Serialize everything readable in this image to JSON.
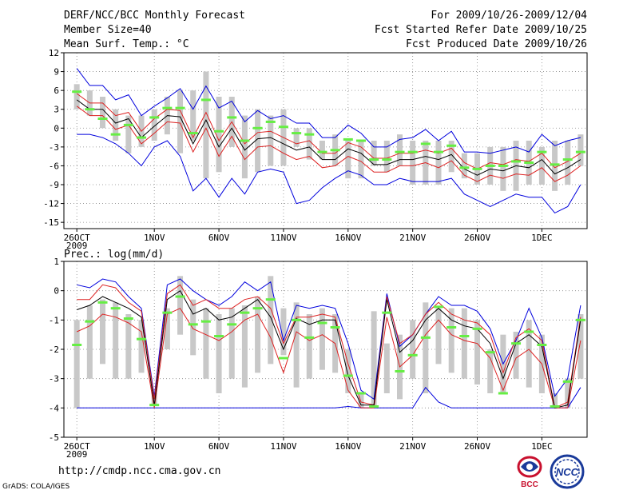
{
  "header": {
    "title": "DERF/NCC/BCC Monthly Forecast",
    "member_size": "Member Size=40",
    "variable": "Mean Surf. Temp.: °C",
    "period": "For 2009/10/26-2009/12/04",
    "started": "Fcst Started Refer Date 2009/10/25",
    "produced": "Fcst Produced Date 2009/10/26"
  },
  "footer": {
    "url": "http://cmdp.ncc.cma.gov.cn",
    "grads": "GrADS: COLA/IGES"
  },
  "logos": [
    {
      "name": "bcc-logo",
      "text": "BCC",
      "color": "#c8102e"
    },
    {
      "name": "ncc-logo",
      "text": "NCC",
      "color": "#1a3a9a"
    }
  ],
  "colors": {
    "spread": "#c8c8c8",
    "median": "#66ee44",
    "mean": "#000000",
    "inner": "#dd2222",
    "outer": "#0000dd",
    "grid": "#888888"
  },
  "chart_data": [
    {
      "type": "line",
      "title": "Mean Surf. Temp.: °C",
      "x_tick_labels": [
        "26OCT",
        "1NOV",
        "6NOV",
        "11NOV",
        "16NOV",
        "21NOV",
        "26NOV",
        "1DEC"
      ],
      "x_tick_days": [
        1,
        7,
        12,
        17,
        22,
        27,
        32,
        37
      ],
      "x_year_label": "2009",
      "days": 40,
      "ylim": [
        -16,
        12
      ],
      "yticks": [
        12,
        9,
        6,
        3,
        0,
        -3,
        -6,
        -9,
        -12,
        -15
      ],
      "series": [
        {
          "name": "spread_low",
          "values": [
            3,
            2,
            0,
            -2,
            -4,
            -3,
            -2,
            -1,
            -4,
            -2,
            -8,
            -7,
            -3,
            -8,
            -7,
            -6,
            -6,
            -3,
            -5,
            -5,
            -6,
            -8,
            -8,
            -6,
            -7,
            -6,
            -9,
            -9,
            -9,
            -7,
            -8,
            -9,
            -9,
            -10,
            -10,
            -9,
            -9,
            -10,
            -9,
            -6
          ]
        },
        {
          "name": "spread_high",
          "values": [
            7,
            6,
            5,
            3,
            2,
            2,
            3,
            5,
            6,
            6,
            9,
            5,
            5,
            2,
            3,
            2,
            3,
            0,
            0,
            -2,
            -1,
            -2,
            -2,
            -2,
            -2,
            -1,
            -2,
            -2,
            -2,
            -2,
            -4,
            -4,
            -3,
            -3,
            -2,
            -2,
            -3,
            -2,
            -2,
            -1
          ]
        },
        {
          "name": "ensemble_median",
          "values": [
            5.8,
            3.0,
            1.5,
            -1.0,
            0.5,
            -1.5,
            1.7,
            3.2,
            3.2,
            -0.8,
            4.5,
            -0.5,
            1.7,
            -2.0,
            0,
            1.0,
            0.2,
            -0.8,
            -1.0,
            -3.8,
            -3.5,
            -1.8,
            -2.0,
            -5.0,
            -5.0,
            -3.8,
            -3.8,
            -2.5,
            -3.8,
            -2.8,
            -6.3,
            -6.5,
            -6.0,
            -6.0,
            -5.3,
            -5.5,
            -3.8,
            -5.8,
            -5.0,
            -3.8
          ]
        },
        {
          "name": "ensemble_mean",
          "values": [
            4.5,
            3.0,
            3.0,
            0.8,
            1.5,
            -1.5,
            0.3,
            2.0,
            1.8,
            -2.5,
            1.3,
            -3.0,
            0,
            -3.5,
            -1.7,
            -1.5,
            -2.5,
            -3.5,
            -3.0,
            -5.0,
            -5.0,
            -3.3,
            -4.0,
            -5.8,
            -5.8,
            -5.0,
            -5.0,
            -4.5,
            -5.0,
            -4.2,
            -6.5,
            -7.5,
            -6.5,
            -6.8,
            -6.0,
            -6.3,
            -5.0,
            -7.3,
            -6.3,
            -5.0
          ]
        },
        {
          "name": "mean_plus_sd",
          "values": [
            5.5,
            4.0,
            4.0,
            2.0,
            2.5,
            -0.5,
            1.5,
            3.0,
            2.8,
            -1.5,
            2.5,
            -2.0,
            1.0,
            -2.5,
            -0.7,
            -0.5,
            -1.5,
            -2.5,
            -2.0,
            -4.0,
            -4.0,
            -2.3,
            -3.0,
            -4.8,
            -4.8,
            -4.0,
            -4.0,
            -3.5,
            -4.0,
            -3.2,
            -5.5,
            -6.5,
            -5.5,
            -5.8,
            -5.0,
            -5.3,
            -4.0,
            -6.3,
            -5.3,
            -4.0
          ]
        },
        {
          "name": "mean_minus_sd",
          "values": [
            3.5,
            2.0,
            2.0,
            -0.2,
            0.5,
            -2.5,
            -0.8,
            1.0,
            0.8,
            -3.8,
            0.0,
            -4.5,
            -1.3,
            -5.0,
            -3.0,
            -2.8,
            -4.0,
            -5.0,
            -4.5,
            -6.3,
            -6.0,
            -4.5,
            -5.3,
            -7.0,
            -7.0,
            -6.0,
            -6.0,
            -5.5,
            -6.3,
            -5.2,
            -7.5,
            -8.5,
            -7.5,
            -8.0,
            -7.3,
            -7.5,
            -6.3,
            -8.5,
            -7.5,
            -6.0
          ]
        },
        {
          "name": "ensemble_max",
          "values": [
            9.5,
            6.8,
            6.8,
            4.5,
            5.3,
            2.0,
            3.5,
            4.8,
            6.3,
            3.0,
            6.7,
            3.2,
            4.3,
            1.0,
            2.8,
            1.5,
            2.0,
            0.8,
            0.8,
            -1.5,
            -1.5,
            0.5,
            -0.8,
            -3.0,
            -3.0,
            -1.8,
            -1.5,
            -0.2,
            -2.0,
            -0.5,
            -3.8,
            -3.8,
            -4.0,
            -3.5,
            -3.0,
            -3.8,
            -1.0,
            -2.8,
            -2.0,
            -1.5
          ]
        },
        {
          "name": "ensemble_min",
          "values": [
            -1.0,
            -1.0,
            -1.5,
            -2.5,
            -4.0,
            -6.0,
            -3.0,
            -2.0,
            -4.5,
            -10.0,
            -8.0,
            -11.0,
            -8.0,
            -10.5,
            -7.0,
            -6.5,
            -7.0,
            -12.0,
            -11.5,
            -9.5,
            -8.0,
            -6.8,
            -7.5,
            -9.0,
            -9.0,
            -8.0,
            -8.5,
            -8.5,
            -8.5,
            -8.0,
            -10.5,
            -11.5,
            -12.5,
            -11.5,
            -10.5,
            -11.0,
            -11.0,
            -13.5,
            -12.5,
            -9.0
          ]
        }
      ]
    },
    {
      "type": "line",
      "title": "Prec.: log(mm/d)",
      "x_tick_labels": [
        "26OCT",
        "1NOV",
        "6NOV",
        "11NOV",
        "16NOV",
        "21NOV",
        "26NOV",
        "1DEC"
      ],
      "x_tick_days": [
        1,
        7,
        12,
        17,
        22,
        27,
        32,
        37
      ],
      "x_year_label": "2009",
      "days": 40,
      "ylim": [
        -5,
        1
      ],
      "yticks": [
        1,
        0,
        -1,
        -2,
        -3,
        -4,
        -5
      ],
      "series": [
        {
          "name": "spread_low",
          "values": [
            -4,
            -3,
            -2.5,
            -3,
            -3,
            -2.8,
            -3.9,
            -2,
            -1.5,
            -2.2,
            -3.0,
            -3.5,
            -3.0,
            -3.3,
            -2.8,
            -2.5,
            -2.2,
            -3.3,
            -3.0,
            -2.7,
            -2.8,
            -3.5,
            -4,
            -4,
            -3.5,
            -3.7,
            -3.0,
            -3.5,
            -2.5,
            -2.8,
            -3.0,
            -3.2,
            -3.5,
            -3.5,
            -3.0,
            -3.3,
            -3.5,
            -4,
            -4,
            -3.0
          ]
        },
        {
          "name": "spread_high",
          "values": [
            -1,
            -0.5,
            -0.3,
            -0.4,
            -0.8,
            -1.0,
            -3.5,
            -0.6,
            0.5,
            -0.3,
            -0.6,
            -0.8,
            -0.6,
            -0.5,
            -0.2,
            0.5,
            -0.6,
            -0.4,
            -0.8,
            -0.6,
            -0.8,
            -2.0,
            -3.5,
            -0.7,
            -1.8,
            -1.5,
            -1.0,
            -0.4,
            -0.6,
            -0.6,
            -0.6,
            -1.0,
            -2.0,
            -1.5,
            -1.4,
            -1.0,
            -1.5,
            -3.5,
            -3.0,
            -0.8
          ]
        },
        {
          "name": "ensemble_median",
          "values": [
            -1.85,
            -1.05,
            -0.4,
            -0.6,
            -0.95,
            -1.65,
            -3.9,
            -0.75,
            -0.2,
            -1.15,
            -1.05,
            -1.55,
            -1.15,
            -0.75,
            -0.6,
            -0.3,
            -2.3,
            -1.0,
            -1.6,
            -1.1,
            -1.25,
            -2.9,
            -3.5,
            -3.95,
            -0.75,
            -2.75,
            -2.2,
            -1.6,
            -0.55,
            -1.25,
            -1.55,
            -1.3,
            -2.1,
            -3.5,
            -1.8,
            -1.4,
            -1.85,
            -3.95,
            -3.1,
            -1.0
          ]
        },
        {
          "name": "ensemble_mean",
          "values": [
            -0.65,
            -0.5,
            -0.2,
            -0.4,
            -0.6,
            -0.9,
            -3.9,
            -0.3,
            0.0,
            -0.8,
            -0.6,
            -1.0,
            -0.9,
            -0.6,
            -0.3,
            -0.9,
            -2.0,
            -0.95,
            -1.15,
            -1.0,
            -1.0,
            -2.9,
            -3.9,
            -3.9,
            -0.3,
            -2.1,
            -1.7,
            -1.0,
            -0.6,
            -1.0,
            -1.2,
            -1.3,
            -1.8,
            -3.0,
            -1.8,
            -1.5,
            -1.9,
            -4.0,
            -3.9,
            -1.0
          ]
        },
        {
          "name": "mean_plus_sd",
          "values": [
            -0.3,
            -0.3,
            0.2,
            0.1,
            -0.4,
            -0.7,
            -3.7,
            -0.1,
            0.2,
            -0.5,
            -0.3,
            -0.6,
            -0.6,
            -0.3,
            -0.2,
            -0.6,
            -1.8,
            -0.9,
            -0.9,
            -0.8,
            -0.9,
            -2.5,
            -3.8,
            -3.9,
            -0.2,
            -1.8,
            -1.5,
            -0.8,
            -0.4,
            -0.8,
            -1.0,
            -1.1,
            -1.5,
            -2.8,
            -1.6,
            -1.3,
            -1.7,
            -4.0,
            -3.8,
            -0.9
          ]
        },
        {
          "name": "mean_minus_sd",
          "values": [
            -1.4,
            -1.2,
            -0.8,
            -0.9,
            -1.1,
            -1.4,
            -4.0,
            -0.8,
            -0.6,
            -1.3,
            -1.5,
            -1.7,
            -1.4,
            -1.0,
            -0.8,
            -1.6,
            -2.8,
            -1.4,
            -1.7,
            -1.5,
            -1.8,
            -3.4,
            -4.0,
            -4.0,
            -0.9,
            -2.6,
            -2.2,
            -1.5,
            -1.0,
            -1.5,
            -1.7,
            -1.8,
            -2.3,
            -3.4,
            -2.3,
            -2.0,
            -2.5,
            -4.0,
            -4.0,
            -1.7
          ]
        },
        {
          "name": "ensemble_max",
          "values": [
            0.2,
            0.1,
            0.4,
            0.3,
            -0.2,
            -0.6,
            -3.6,
            0.2,
            0.4,
            0.0,
            -0.3,
            -0.5,
            -0.2,
            0.3,
            0.0,
            0.3,
            -1.7,
            -0.5,
            -0.6,
            -0.5,
            -0.6,
            -1.8,
            -3.4,
            -3.7,
            -0.1,
            -1.9,
            -1.5,
            -0.8,
            -0.2,
            -0.5,
            -0.5,
            -0.7,
            -1.3,
            -2.5,
            -1.7,
            -0.6,
            -1.6,
            -3.6,
            -3.0,
            -0.5
          ]
        },
        {
          "name": "ensemble_min",
          "values": [
            -4,
            -4,
            -4,
            -4,
            -4,
            -4,
            -4,
            -4,
            -4,
            -4,
            -4,
            -4,
            -4,
            -4,
            -4,
            -4,
            -4,
            -4,
            -4,
            -4,
            -4,
            -3.95,
            -4,
            -4,
            -4,
            -4,
            -4,
            -3.3,
            -3.8,
            -4,
            -4,
            -4,
            -4,
            -4,
            -4,
            -4,
            -4,
            -4,
            -4,
            -3.3
          ]
        }
      ]
    }
  ]
}
